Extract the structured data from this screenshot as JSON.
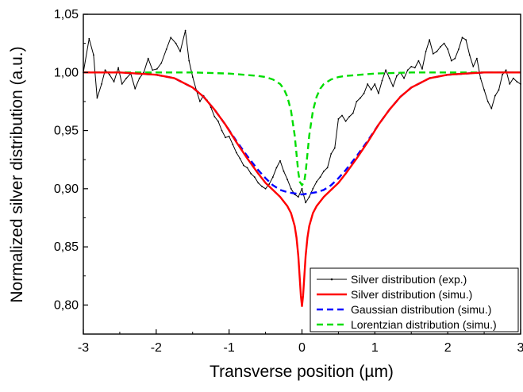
{
  "chart_data": {
    "type": "line",
    "xlabel": "Transverse position (µm)",
    "ylabel": "Normalized silver distribution (a.u.)",
    "xlim": [
      -3,
      3
    ],
    "ylim": [
      0.775,
      1.05
    ],
    "x_ticks": [
      -3,
      -2,
      -1,
      0,
      1,
      2,
      3
    ],
    "x_tick_labels": [
      "-3",
      "-2",
      "-1",
      "0",
      "1",
      "2",
      "3"
    ],
    "y_ticks": [
      0.8,
      0.85,
      0.9,
      0.95,
      1.0,
      1.05
    ],
    "y_tick_labels": [
      "0,80",
      "0,85",
      "0,90",
      "0,95",
      "1,00",
      "1,05"
    ],
    "grid": false,
    "legend_position": "bottom-right",
    "series": [
      {
        "name": "Silver distribution (exp.)",
        "color": "#000000",
        "style": "solid-thin-markers",
        "x": [
          -3.0,
          -2.92,
          -2.86,
          -2.81,
          -2.75,
          -2.7,
          -2.64,
          -2.58,
          -2.52,
          -2.47,
          -2.41,
          -2.35,
          -2.29,
          -2.23,
          -2.17,
          -2.11,
          -2.05,
          -1.99,
          -1.93,
          -1.86,
          -1.8,
          -1.73,
          -1.67,
          -1.6,
          -1.55,
          -1.5,
          -1.45,
          -1.4,
          -1.35,
          -1.3,
          -1.25,
          -1.2,
          -1.15,
          -1.1,
          -1.05,
          -1.0,
          -0.95,
          -0.9,
          -0.85,
          -0.8,
          -0.75,
          -0.7,
          -0.65,
          -0.6,
          -0.55,
          -0.5,
          -0.45,
          -0.4,
          -0.35,
          -0.3,
          -0.25,
          -0.2,
          -0.15,
          -0.1,
          -0.05,
          0.0,
          0.05,
          0.1,
          0.15,
          0.2,
          0.25,
          0.3,
          0.35,
          0.4,
          0.45,
          0.5,
          0.55,
          0.6,
          0.65,
          0.7,
          0.75,
          0.8,
          0.85,
          0.9,
          0.95,
          1.0,
          1.05,
          1.1,
          1.15,
          1.2,
          1.25,
          1.3,
          1.35,
          1.4,
          1.45,
          1.5,
          1.55,
          1.6,
          1.65,
          1.7,
          1.75,
          1.8,
          1.85,
          1.9,
          1.95,
          2.0,
          2.05,
          2.1,
          2.15,
          2.2,
          2.25,
          2.3,
          2.35,
          2.4,
          2.45,
          2.5,
          2.55,
          2.6,
          2.65,
          2.7,
          2.75,
          2.8,
          2.85,
          2.9,
          2.95,
          3.0
        ],
        "y": [
          1.0,
          1.029,
          1.015,
          0.978,
          0.99,
          1.002,
          0.998,
          0.992,
          1.004,
          0.99,
          0.995,
          0.999,
          0.986,
          0.995,
          1.0,
          1.012,
          1.002,
          1.003,
          1.008,
          1.02,
          1.03,
          1.025,
          1.018,
          1.036,
          1.01,
          0.996,
          0.985,
          0.975,
          0.98,
          0.976,
          0.97,
          0.962,
          0.958,
          0.95,
          0.944,
          0.945,
          0.938,
          0.931,
          0.926,
          0.92,
          0.918,
          0.913,
          0.91,
          0.905,
          0.902,
          0.9,
          0.904,
          0.91,
          0.918,
          0.924,
          0.915,
          0.908,
          0.9,
          0.895,
          0.893,
          0.9,
          0.888,
          0.893,
          0.9,
          0.906,
          0.91,
          0.915,
          0.918,
          0.93,
          0.935,
          0.96,
          0.963,
          0.958,
          0.962,
          0.965,
          0.975,
          0.978,
          0.982,
          0.99,
          0.985,
          0.99,
          0.982,
          0.993,
          1.002,
          0.995,
          0.988,
          0.997,
          1.0,
          0.995,
          1.002,
          1.005,
          1.004,
          1.01,
          1.003,
          1.018,
          1.028,
          1.016,
          1.018,
          1.022,
          1.025,
          1.02,
          1.01,
          1.012,
          1.02,
          1.03,
          1.028,
          1.015,
          1.005,
          1.012,
          0.995,
          0.985,
          0.975,
          0.969,
          0.98,
          0.985,
          0.998,
          1.002,
          0.99,
          0.995,
          0.992,
          0.99
        ]
      },
      {
        "name": "Silver distribution (simu.)",
        "color": "#ff0000",
        "style": "solid",
        "x": [
          -3.0,
          -2.75,
          -2.5,
          -2.25,
          -2.0,
          -1.75,
          -1.5,
          -1.35,
          -1.2,
          -1.05,
          -0.9,
          -0.75,
          -0.6,
          -0.5,
          -0.4,
          -0.3,
          -0.25,
          -0.2,
          -0.15,
          -0.1,
          -0.075,
          -0.05,
          -0.03,
          -0.015,
          0.0,
          0.015,
          0.03,
          0.05,
          0.075,
          0.1,
          0.15,
          0.2,
          0.25,
          0.3,
          0.4,
          0.5,
          0.6,
          0.75,
          0.9,
          1.05,
          1.2,
          1.35,
          1.5,
          1.75,
          2.0,
          2.25,
          2.5,
          2.75,
          3.0
        ],
        "y": [
          1.0,
          1.0,
          1.0,
          0.999,
          0.998,
          0.995,
          0.987,
          0.979,
          0.968,
          0.955,
          0.94,
          0.926,
          0.913,
          0.905,
          0.899,
          0.893,
          0.889,
          0.885,
          0.879,
          0.868,
          0.858,
          0.842,
          0.823,
          0.808,
          0.799,
          0.808,
          0.823,
          0.842,
          0.858,
          0.868,
          0.879,
          0.885,
          0.889,
          0.893,
          0.899,
          0.905,
          0.913,
          0.926,
          0.94,
          0.955,
          0.968,
          0.979,
          0.987,
          0.995,
          0.998,
          0.999,
          1.0,
          1.0,
          1.0
        ]
      },
      {
        "name": "Gaussian distribution (simu.)",
        "color": "#0000ff",
        "style": "dashed",
        "x": [
          -3.0,
          -2.75,
          -2.5,
          -2.25,
          -2.0,
          -1.75,
          -1.5,
          -1.35,
          -1.2,
          -1.05,
          -0.9,
          -0.75,
          -0.6,
          -0.5,
          -0.4,
          -0.3,
          -0.2,
          -0.1,
          0.0,
          0.1,
          0.2,
          0.3,
          0.4,
          0.5,
          0.6,
          0.75,
          0.9,
          1.05,
          1.2,
          1.35,
          1.5,
          1.75,
          2.0,
          2.25,
          2.5,
          2.75,
          3.0
        ],
        "y": [
          1.0,
          1.0,
          1.0,
          0.999,
          0.998,
          0.995,
          0.987,
          0.979,
          0.968,
          0.955,
          0.941,
          0.928,
          0.916,
          0.909,
          0.903,
          0.899,
          0.897,
          0.896,
          0.895,
          0.896,
          0.897,
          0.899,
          0.903,
          0.909,
          0.916,
          0.928,
          0.941,
          0.955,
          0.968,
          0.979,
          0.987,
          0.995,
          0.998,
          0.999,
          1.0,
          1.0,
          1.0
        ]
      },
      {
        "name": "Lorentzian distribution (simu.)",
        "color": "#00dd00",
        "style": "dashed",
        "x": [
          -3.0,
          -2.5,
          -2.0,
          -1.5,
          -1.0,
          -0.8,
          -0.6,
          -0.5,
          -0.4,
          -0.3,
          -0.25,
          -0.2,
          -0.15,
          -0.1,
          -0.075,
          -0.05,
          -0.03,
          0.0,
          0.03,
          0.05,
          0.075,
          0.1,
          0.15,
          0.2,
          0.25,
          0.3,
          0.4,
          0.5,
          0.6,
          0.8,
          1.0,
          1.5,
          2.0,
          2.5,
          3.0
        ],
        "y": [
          1.0,
          1.0,
          1.0,
          1.0,
          0.999,
          0.998,
          0.997,
          0.996,
          0.994,
          0.99,
          0.986,
          0.979,
          0.967,
          0.946,
          0.93,
          0.914,
          0.906,
          0.903,
          0.906,
          0.914,
          0.93,
          0.946,
          0.967,
          0.979,
          0.986,
          0.99,
          0.994,
          0.996,
          0.997,
          0.998,
          0.999,
          1.0,
          1.0,
          1.0,
          1.0
        ]
      }
    ]
  }
}
